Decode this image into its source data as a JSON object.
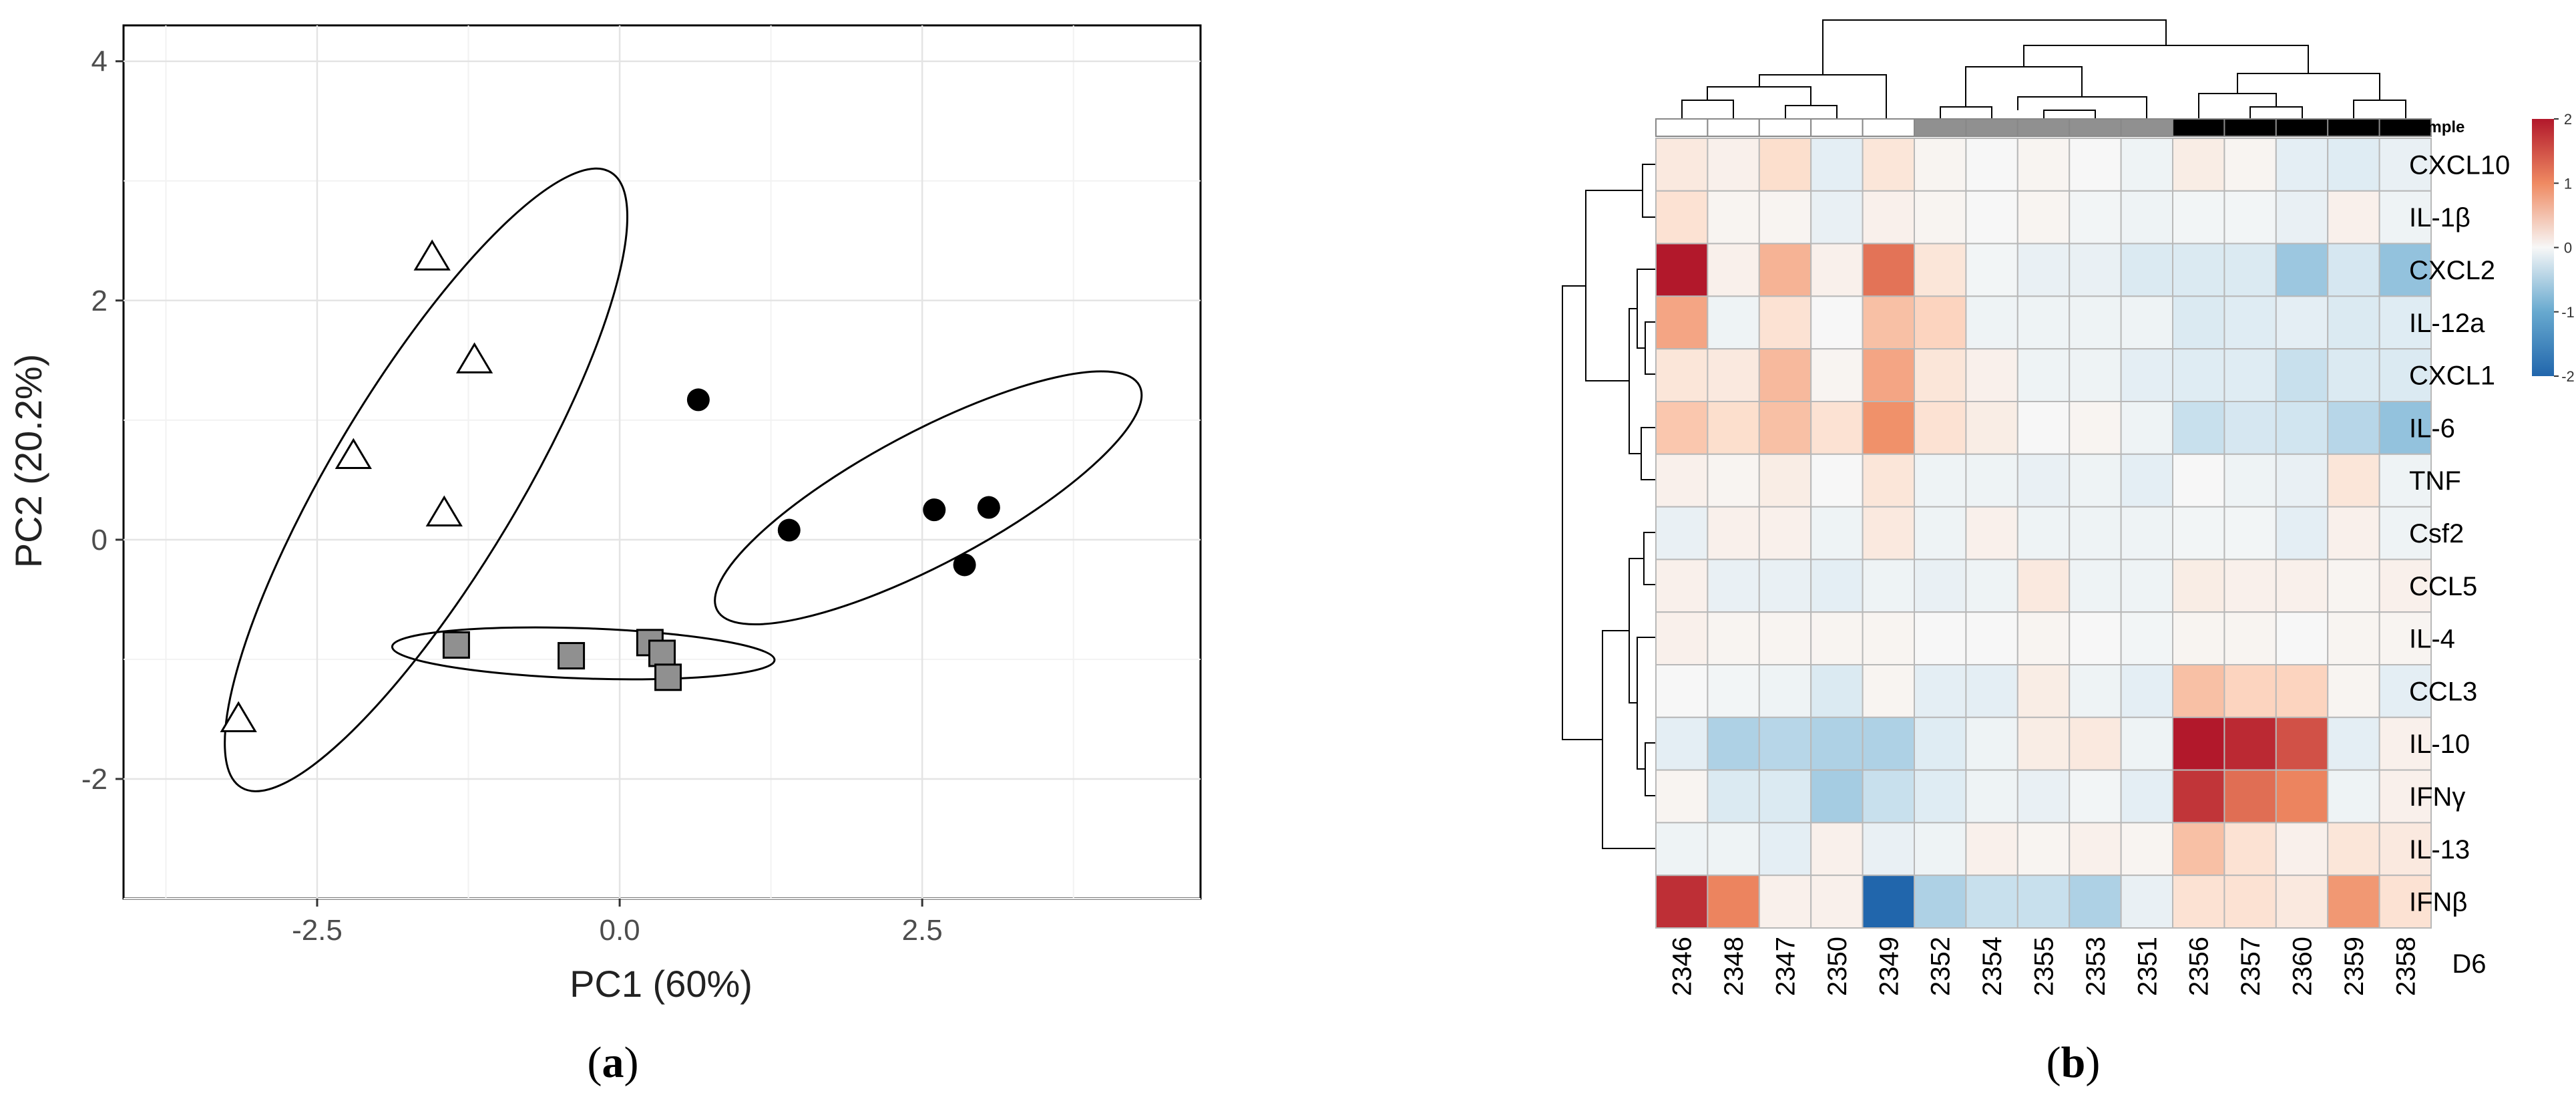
{
  "colors": {
    "group_white": "#ffffff",
    "group_gray": "#909090",
    "group_black": "#000000",
    "heat_low": "#2166ac",
    "heat_mid": "#f7f7f7",
    "heat_high": "#b2182b"
  },
  "panel_a": {
    "label_prefix": "(",
    "label_letter": "a",
    "label_suffix": ")"
  },
  "panel_b": {
    "label_prefix": "(",
    "label_letter": "b",
    "label_suffix": ")"
  },
  "chart_data": [
    {
      "type": "scatter",
      "title": "",
      "xlabel": "PC1 (60%)",
      "ylabel": "PC2 (20.2%)",
      "xlim": [
        -4.1,
        4.8
      ],
      "ylim": [
        -3.0,
        4.3
      ],
      "xticks": [
        -2.5,
        0.0,
        2.5
      ],
      "xtick_labels": [
        "-2.5",
        "0.0",
        "2.5"
      ],
      "yticks": [
        -2,
        0,
        2,
        4
      ],
      "ytick_labels": [
        "-2",
        "0",
        "2",
        "4"
      ],
      "grid": true,
      "series": [
        {
          "name": "triangles",
          "marker": "triangle-open",
          "points": [
            [
              -1.55,
              2.36
            ],
            [
              -1.2,
              1.5
            ],
            [
              -2.2,
              0.7
            ],
            [
              -1.45,
              0.22
            ],
            [
              -3.15,
              -1.5
            ]
          ],
          "ellipse": {
            "cx": -1.6,
            "cy": 0.5,
            "rx": 3.0,
            "ry": 0.78,
            "angle_deg": 59
          }
        },
        {
          "name": "squares",
          "marker": "square-gray",
          "points": [
            [
              -1.35,
              -0.88
            ],
            [
              -0.4,
              -0.97
            ],
            [
              0.25,
              -0.86
            ],
            [
              0.35,
              -0.95
            ],
            [
              0.4,
              -1.15
            ]
          ],
          "ellipse": {
            "cx": -0.3,
            "cy": -0.95,
            "rx": 1.6,
            "ry": 0.21,
            "angle_deg": -2
          }
        },
        {
          "name": "circles",
          "marker": "circle-black",
          "points": [
            [
              0.65,
              1.17
            ],
            [
              1.4,
              0.08
            ],
            [
              2.6,
              0.25
            ],
            [
              3.05,
              0.27
            ],
            [
              2.85,
              -0.21
            ]
          ],
          "ellipse": {
            "cx": 2.55,
            "cy": 0.35,
            "rx": 2.0,
            "ry": 0.55,
            "angle_deg": 28
          }
        }
      ]
    },
    {
      "type": "heatmap",
      "title": "",
      "legend_title": "Sample",
      "corner_label": "D6",
      "columns": [
        "2346",
        "2348",
        "2347",
        "2350",
        "2349",
        "2352",
        "2354",
        "2355",
        "2353",
        "2351",
        "2356",
        "2357",
        "2360",
        "2359",
        "2358"
      ],
      "column_groups": [
        "white",
        "white",
        "white",
        "white",
        "white",
        "gray",
        "gray",
        "gray",
        "gray",
        "gray",
        "black",
        "black",
        "black",
        "black",
        "black"
      ],
      "rows": [
        "CXCL10",
        "IL-1β",
        "CXCL2",
        "IL-12a",
        "CXCL1",
        "IL-6",
        "TNF",
        "Csf2",
        "CCL5",
        "IL-4",
        "CCL3",
        "IL-10",
        "IFNγ",
        "IL-13",
        "IFNβ"
      ],
      "values": [
        [
          0.2,
          0.1,
          0.35,
          -0.2,
          0.25,
          0.05,
          0.0,
          0.05,
          0.0,
          -0.1,
          0.15,
          0.05,
          -0.2,
          -0.25,
          -0.15
        ],
        [
          0.3,
          0.05,
          0.05,
          -0.15,
          0.1,
          0.05,
          0.0,
          0.05,
          -0.05,
          -0.1,
          -0.05,
          -0.05,
          -0.15,
          0.1,
          -0.1
        ],
        [
          2.0,
          0.1,
          0.7,
          0.1,
          1.2,
          0.25,
          -0.05,
          -0.15,
          -0.15,
          -0.3,
          -0.3,
          -0.3,
          -0.7,
          -0.35,
          -0.75
        ],
        [
          0.8,
          -0.1,
          0.3,
          0.0,
          0.6,
          0.45,
          -0.1,
          -0.1,
          -0.1,
          -0.1,
          -0.3,
          -0.25,
          -0.2,
          -0.3,
          -0.25
        ],
        [
          0.25,
          0.2,
          0.65,
          0.05,
          0.8,
          0.25,
          0.1,
          -0.1,
          -0.1,
          -0.2,
          -0.25,
          -0.25,
          -0.45,
          -0.3,
          -0.3
        ],
        [
          0.55,
          0.35,
          0.6,
          0.3,
          0.95,
          0.3,
          0.15,
          0.0,
          0.05,
          -0.1,
          -0.45,
          -0.35,
          -0.4,
          -0.55,
          -0.75
        ],
        [
          0.1,
          0.05,
          0.15,
          0.0,
          0.25,
          -0.1,
          -0.1,
          -0.15,
          -0.1,
          -0.2,
          0.0,
          -0.1,
          -0.15,
          0.25,
          -0.1
        ],
        [
          -0.15,
          0.1,
          0.1,
          -0.1,
          0.2,
          -0.1,
          0.1,
          -0.1,
          -0.1,
          -0.1,
          -0.05,
          -0.05,
          -0.2,
          0.1,
          -0.1
        ],
        [
          0.1,
          -0.15,
          -0.15,
          -0.2,
          -0.1,
          -0.15,
          -0.1,
          0.2,
          -0.1,
          -0.1,
          0.15,
          0.1,
          0.1,
          0.05,
          0.1
        ],
        [
          0.1,
          0.05,
          0.05,
          0.05,
          0.05,
          0.0,
          0.0,
          0.05,
          0.0,
          -0.05,
          0.05,
          0.05,
          0.0,
          0.05,
          0.05
        ],
        [
          0.0,
          -0.05,
          -0.1,
          -0.3,
          0.05,
          -0.2,
          -0.2,
          0.15,
          -0.1,
          -0.2,
          0.6,
          0.45,
          0.45,
          0.05,
          -0.2
        ],
        [
          -0.2,
          -0.6,
          -0.55,
          -0.6,
          -0.6,
          -0.25,
          -0.1,
          0.15,
          0.2,
          -0.1,
          2.1,
          1.85,
          1.5,
          -0.2,
          0.1
        ],
        [
          0.05,
          -0.3,
          -0.3,
          -0.65,
          -0.45,
          -0.25,
          -0.1,
          -0.15,
          -0.05,
          -0.2,
          1.75,
          1.25,
          1.05,
          -0.1,
          0.1
        ],
        [
          -0.1,
          -0.1,
          -0.2,
          0.1,
          -0.15,
          -0.1,
          0.1,
          0.05,
          0.1,
          0.05,
          0.6,
          0.3,
          0.1,
          0.25,
          0.2
        ],
        [
          1.8,
          1.05,
          0.1,
          0.1,
          -2.1,
          -0.6,
          -0.45,
          -0.45,
          -0.6,
          -0.15,
          0.3,
          0.3,
          0.2,
          0.9,
          0.3
        ]
      ],
      "color_scale": {
        "min": -2,
        "max": 2,
        "ticks": [
          2,
          1,
          0,
          -1,
          -2
        ],
        "tick_labels": [
          "2",
          "1",
          "0",
          "-1",
          "-2"
        ]
      }
    }
  ]
}
